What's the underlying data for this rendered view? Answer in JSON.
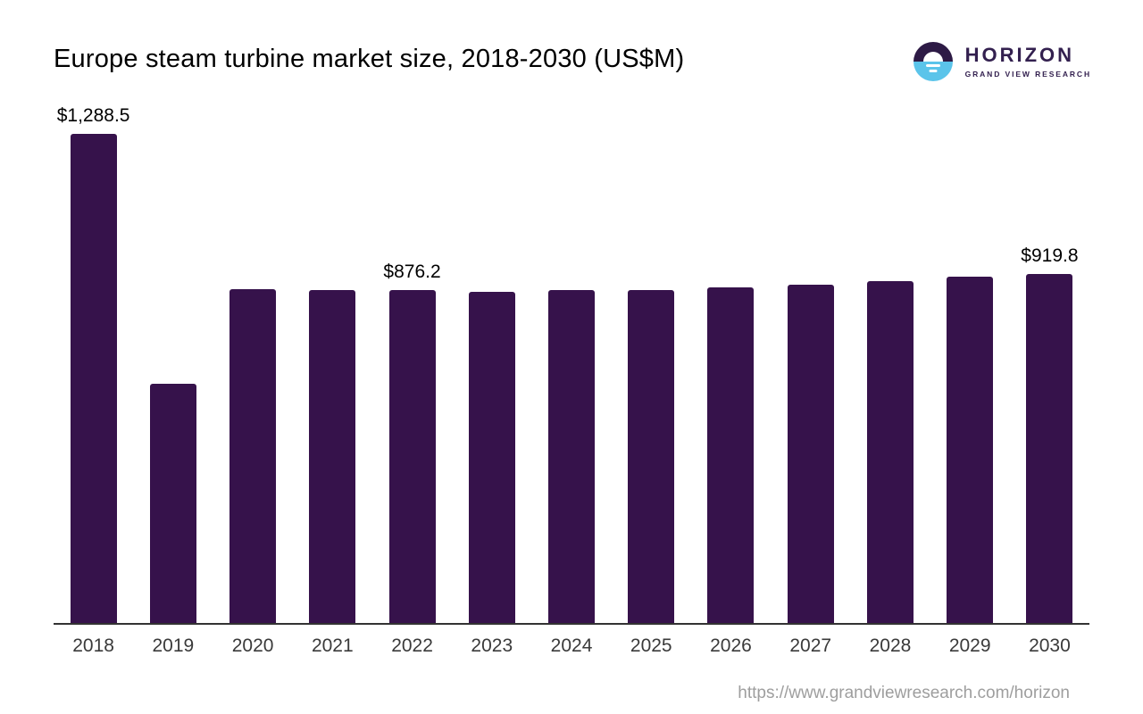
{
  "header": {
    "title": "Europe steam turbine market size, 2018-2030 (US$M)",
    "logo": {
      "brand": "HORIZON",
      "sub_brand": "GRAND VIEW RESEARCH",
      "purple": "#2d1a45",
      "blue": "#5bc4ea"
    }
  },
  "footer": {
    "url": "https://www.grandviewresearch.com/horizon"
  },
  "chart_data": {
    "type": "bar",
    "title": "Europe steam turbine market size, 2018-2030 (US$M)",
    "categories": [
      "2018",
      "2019",
      "2020",
      "2021",
      "2022",
      "2023",
      "2024",
      "2025",
      "2026",
      "2027",
      "2028",
      "2029",
      "2030"
    ],
    "values": [
      1288.5,
      630.0,
      880.5,
      878.0,
      876.2,
      873.5,
      876.5,
      878.0,
      883.5,
      891.5,
      901.0,
      912.0,
      919.8
    ],
    "data_labels": [
      "$1,288.5",
      "",
      "",
      "",
      "$876.2",
      "",
      "",
      "",
      "",
      "",
      "",
      "",
      "$919.8"
    ],
    "bar_color": "#36124b",
    "axis_color": "#333333",
    "xlabel": "",
    "ylabel": "",
    "ylim": [
      0,
      1288.5
    ],
    "grid": false,
    "legend": false
  }
}
